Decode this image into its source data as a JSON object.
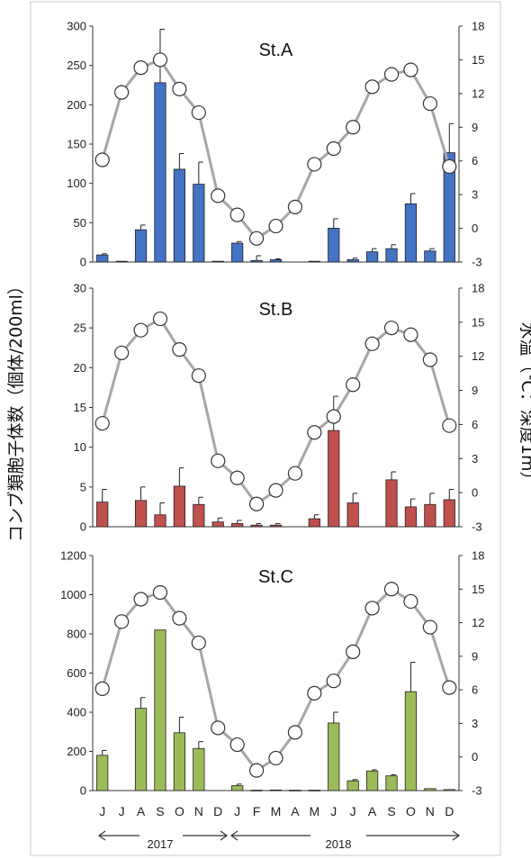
{
  "ylabel_left": "コンブ類胞子体数（個体/200ml）",
  "ylabel_right": "水温（℃：深度1m）",
  "years": [
    "2017",
    "2018"
  ],
  "months": [
    "J",
    "J",
    "A",
    "S",
    "O",
    "N",
    "D",
    "J",
    "F",
    "M",
    "A",
    "M",
    "J",
    "J",
    "A",
    "S",
    "O",
    "N",
    "D"
  ],
  "colors": {
    "stA": "#4472c4",
    "stB": "#c0504d",
    "stC": "#9bbb59",
    "line": "#a6a6a6"
  },
  "chart_data": [
    {
      "type": "bar",
      "title": "St.A",
      "categories": [
        "Jun 2017",
        "Jul 2017",
        "Aug 2017",
        "Sep 2017",
        "Oct 2017",
        "Nov 2017",
        "Dec 2017",
        "Jan 2018",
        "Feb 2018",
        "Mar 2018",
        "Apr 2018",
        "May 2018",
        "Jun 2018",
        "Jul 2018",
        "Aug 2018",
        "Sep 2018",
        "Oct 2018",
        "Nov 2018",
        "Dec 2018"
      ],
      "ylim": [
        0,
        300
      ],
      "yticks": [
        0,
        50,
        100,
        150,
        200,
        250,
        300
      ],
      "y2lim": [
        -3,
        18
      ],
      "y2ticks": [
        -3,
        0,
        3,
        6,
        9,
        12,
        15,
        18
      ],
      "bars": [
        9,
        1,
        41,
        228,
        118,
        99,
        1,
        24,
        2,
        3,
        0,
        1,
        43,
        3,
        13,
        17,
        74,
        14,
        139
      ],
      "errors": [
        1.5,
        0,
        6,
        68,
        20,
        28,
        0,
        2,
        6,
        1,
        0,
        0,
        12,
        2,
        4,
        5,
        13,
        3,
        37
      ],
      "temperature": [
        6.1,
        12.1,
        14.3,
        15.0,
        12.4,
        10.3,
        2.9,
        1.2,
        -0.9,
        0.2,
        1.9,
        5.7,
        7.1,
        9.0,
        12.6,
        13.7,
        14.1,
        11.1,
        5.5
      ]
    },
    {
      "type": "bar",
      "title": "St.B",
      "categories": [
        "Jun 2017",
        "Jul 2017",
        "Aug 2017",
        "Sep 2017",
        "Oct 2017",
        "Nov 2017",
        "Dec 2017",
        "Jan 2018",
        "Feb 2018",
        "Mar 2018",
        "Apr 2018",
        "May 2018",
        "Jun 2018",
        "Jul 2018",
        "Aug 2018",
        "Sep 2018",
        "Oct 2018",
        "Nov 2018",
        "Dec 2018"
      ],
      "ylim": [
        0,
        30
      ],
      "yticks": [
        0,
        5,
        10,
        15,
        20,
        25,
        30
      ],
      "y2lim": [
        -3,
        18
      ],
      "y2ticks": [
        -3,
        0,
        3,
        6,
        9,
        12,
        15,
        18
      ],
      "bars": [
        3.1,
        0,
        3.3,
        1.5,
        5.1,
        2.8,
        0.6,
        0.4,
        0.2,
        0.2,
        0,
        1.0,
        12.1,
        3.0,
        0,
        5.9,
        2.5,
        2.8,
        3.4
      ],
      "errors": [
        1.6,
        0,
        1.7,
        1.5,
        2.3,
        0.9,
        0.5,
        0.4,
        0.2,
        0.2,
        0,
        0.5,
        4.3,
        1.2,
        0,
        1.0,
        1.0,
        1.4,
        1.3
      ],
      "temperature": [
        6.1,
        12.3,
        14.3,
        15.3,
        12.6,
        10.3,
        2.8,
        1.3,
        -1.0,
        0.2,
        1.7,
        5.3,
        6.7,
        9.5,
        13.1,
        14.5,
        13.9,
        11.7,
        5.9
      ]
    },
    {
      "type": "bar",
      "title": "St.C",
      "categories": [
        "Jun 2017",
        "Jul 2017",
        "Aug 2017",
        "Sep 2017",
        "Oct 2017",
        "Nov 2017",
        "Dec 2017",
        "Jan 2018",
        "Feb 2018",
        "Mar 2018",
        "Apr 2018",
        "May 2018",
        "Jun 2018",
        "Jul 2018",
        "Aug 2018",
        "Sep 2018",
        "Oct 2018",
        "Nov 2018",
        "Dec 2018"
      ],
      "ylim": [
        0,
        1200
      ],
      "yticks": [
        0,
        200,
        400,
        600,
        800,
        1000,
        1200
      ],
      "y2lim": [
        -3,
        18
      ],
      "y2ticks": [
        -3,
        0,
        3,
        6,
        9,
        12,
        15,
        18
      ],
      "bars": [
        180,
        0,
        420,
        820,
        295,
        215,
        0,
        25,
        2,
        3,
        2,
        2,
        345,
        50,
        100,
        75,
        505,
        10,
        5
      ],
      "errors": [
        25,
        0,
        55,
        0,
        80,
        35,
        0,
        8,
        0,
        0,
        0,
        0,
        55,
        6,
        6,
        6,
        150,
        0,
        0
      ],
      "temperature": [
        6.1,
        12.1,
        14.1,
        14.7,
        12.4,
        10.2,
        2.6,
        1.1,
        -1.2,
        -0.1,
        2.2,
        5.7,
        6.8,
        9.4,
        13.3,
        15.0,
        13.9,
        11.6,
        6.2
      ]
    }
  ]
}
